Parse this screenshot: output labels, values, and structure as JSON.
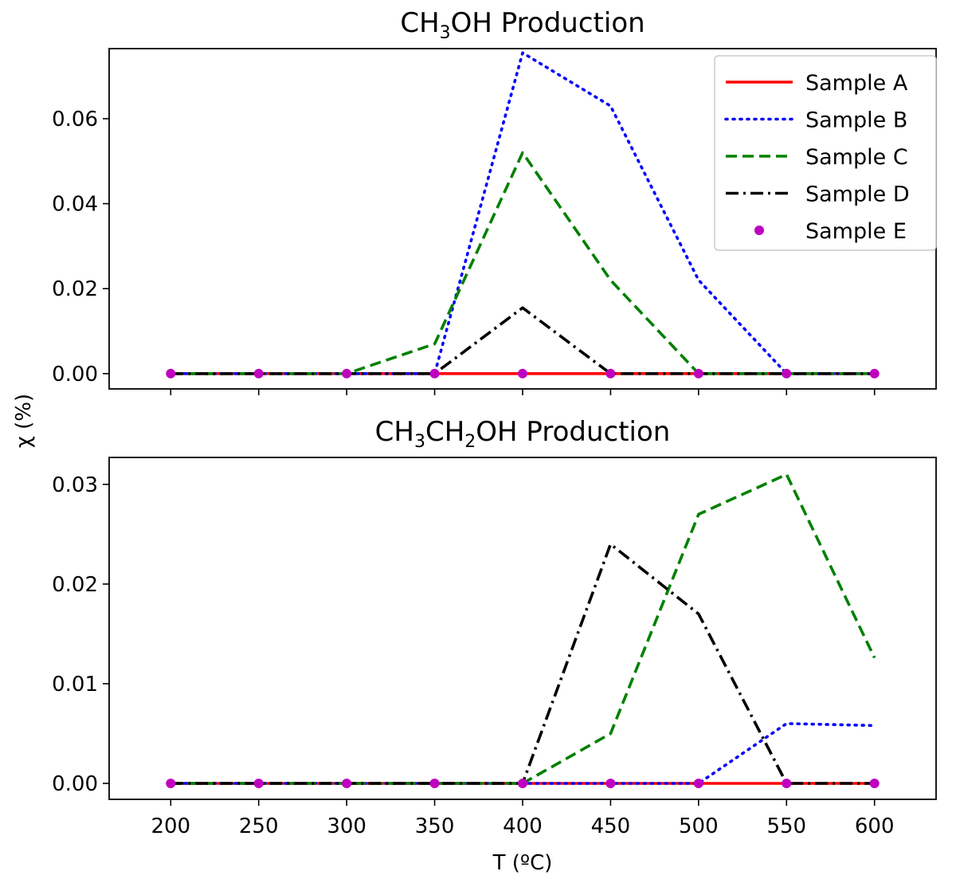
{
  "chart_data": [
    {
      "type": "line",
      "title": {
        "parts": [
          {
            "t": "CH"
          },
          {
            "t": "3",
            "sub": true
          },
          {
            "t": "OH Production"
          }
        ]
      },
      "x": [
        200,
        250,
        300,
        350,
        400,
        450,
        500,
        550,
        600
      ],
      "ylim": [
        -0.0036,
        0.0765
      ],
      "yticks": [
        0.0,
        0.02,
        0.04,
        0.06
      ],
      "ytick_labels": [
        "0.00",
        "0.02",
        "0.04",
        "0.06"
      ],
      "xticks_visible": false,
      "series": [
        {
          "name": "Sample A",
          "color": "#ff0000",
          "style": "solid",
          "values": [
            0,
            0,
            0,
            0,
            0,
            0,
            0,
            0,
            0
          ]
        },
        {
          "name": "Sample B",
          "color": "#0000ff",
          "style": "dotted",
          "values": [
            0,
            0,
            0,
            0,
            0.0755,
            0.063,
            0.022,
            0,
            0
          ]
        },
        {
          "name": "Sample C",
          "color": "#008000",
          "style": "dashed",
          "values": [
            0,
            0,
            0,
            0.007,
            0.052,
            0.022,
            0,
            0,
            0
          ]
        },
        {
          "name": "Sample D",
          "color": "#000000",
          "style": "dashdot",
          "values": [
            0,
            0,
            0,
            0,
            0.0155,
            0,
            0,
            0,
            0
          ]
        },
        {
          "name": "Sample E",
          "color": "#bf00bf",
          "style": "markers",
          "values": [
            0,
            0,
            0,
            0,
            0,
            0,
            0,
            0,
            0
          ]
        }
      ],
      "legend": "top-right"
    },
    {
      "type": "line",
      "title": {
        "parts": [
          {
            "t": "CH"
          },
          {
            "t": "3",
            "sub": true
          },
          {
            "t": "CH"
          },
          {
            "t": "2",
            "sub": true
          },
          {
            "t": "OH Production"
          }
        ]
      },
      "x": [
        200,
        250,
        300,
        350,
        400,
        450,
        500,
        550,
        600
      ],
      "ylim": [
        -0.0016,
        0.0327
      ],
      "yticks": [
        0.0,
        0.01,
        0.02,
        0.03
      ],
      "ytick_labels": [
        "0.00",
        "0.01",
        "0.02",
        "0.03"
      ],
      "xticks_visible": true,
      "xtick_labels": [
        "200",
        "250",
        "300",
        "350",
        "400",
        "450",
        "500",
        "550",
        "600"
      ],
      "xlabel": "T (ºC)",
      "series": [
        {
          "name": "Sample A",
          "color": "#ff0000",
          "style": "solid",
          "values": [
            0,
            0,
            0,
            0,
            0,
            0,
            0,
            0,
            0
          ]
        },
        {
          "name": "Sample B",
          "color": "#0000ff",
          "style": "dotted",
          "values": [
            0,
            0,
            0,
            0,
            0,
            0,
            0,
            0.006,
            0.0058
          ]
        },
        {
          "name": "Sample C",
          "color": "#008000",
          "style": "dashed",
          "values": [
            0,
            0,
            0,
            0,
            0,
            0.005,
            0.027,
            0.031,
            0.0126
          ]
        },
        {
          "name": "Sample D",
          "color": "#000000",
          "style": "dashdot",
          "values": [
            0,
            0,
            0,
            0,
            0,
            0.024,
            0.017,
            0,
            0
          ]
        },
        {
          "name": "Sample E",
          "color": "#bf00bf",
          "style": "markers",
          "values": [
            0,
            0,
            0,
            0,
            0,
            0,
            0,
            0,
            0
          ]
        }
      ]
    }
  ],
  "ylabel": "χ (%)"
}
